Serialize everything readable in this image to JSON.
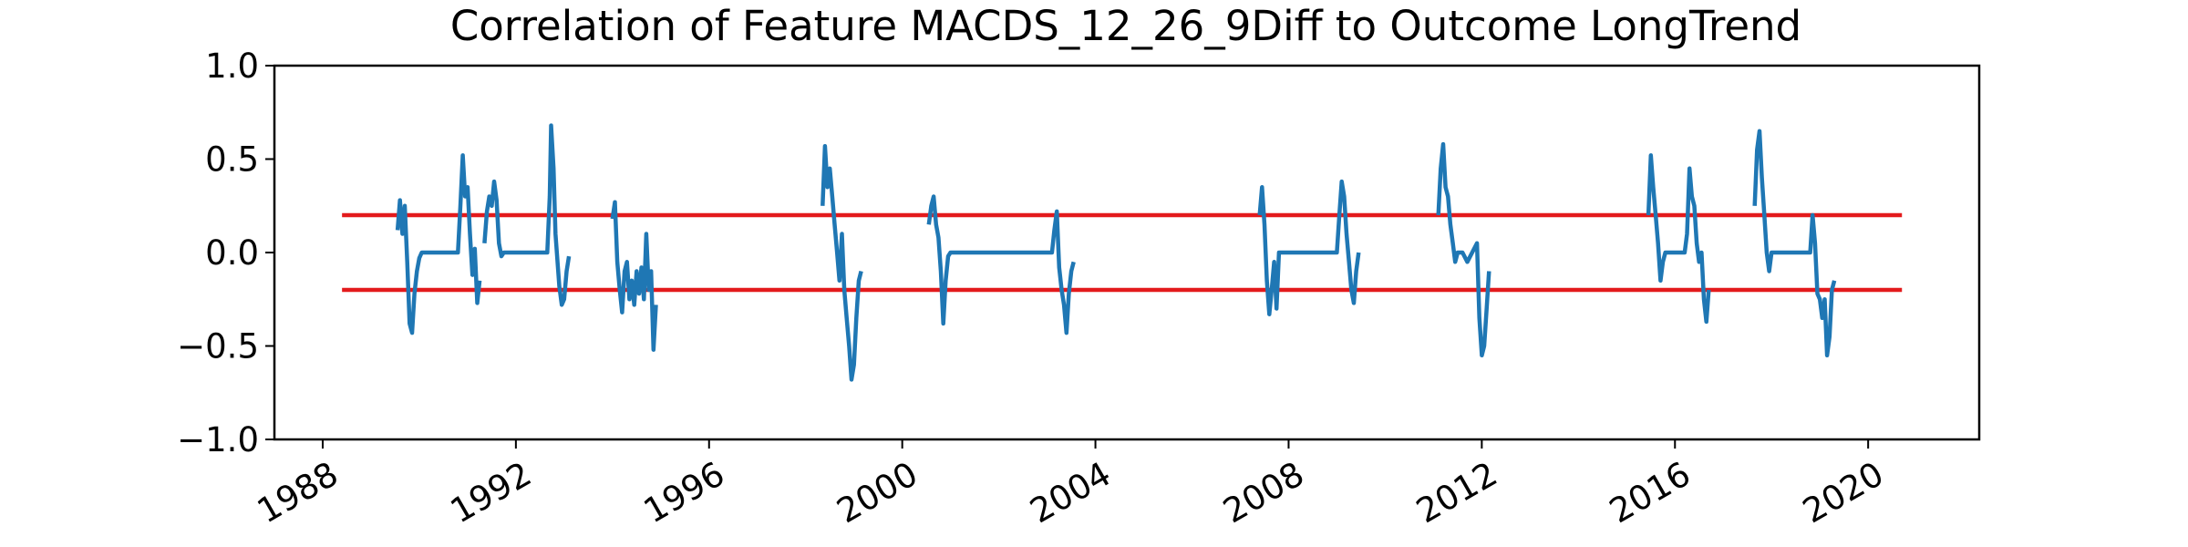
{
  "chart_data": {
    "type": "line",
    "title": "Correlation of Feature MACDS_12_26_9Diff to Outcome LongTrend",
    "xlabel": "",
    "ylabel": "",
    "xlim": [
      1987.0,
      2022.3
    ],
    "ylim": [
      -1.0,
      1.0
    ],
    "x_ticks": [
      1988,
      1992,
      1996,
      2000,
      2004,
      2008,
      2012,
      2016,
      2020
    ],
    "x_tick_labels": [
      "1988",
      "1992",
      "1996",
      "2000",
      "2004",
      "2008",
      "2012",
      "2016",
      "2020"
    ],
    "y_ticks": [
      -1.0,
      -0.5,
      0.0,
      0.5,
      1.0
    ],
    "y_tick_labels": [
      "−1.0",
      "−0.5",
      "0.0",
      "0.5",
      "1.0"
    ],
    "grid": false,
    "threshold_lines": [
      {
        "y": 0.2,
        "x_start": 1988.4,
        "x_end": 2020.7,
        "color": "#e31a1c"
      },
      {
        "y": -0.2,
        "x_start": 1988.4,
        "x_end": 2020.7,
        "color": "#e31a1c"
      }
    ],
    "series_color": "#1f77b4",
    "series": [
      {
        "segments": [
          [
            [
              1989.55,
              0.12
            ],
            [
              1989.6,
              0.28
            ],
            [
              1989.65,
              0.1
            ],
            [
              1989.7,
              0.25
            ],
            [
              1989.75,
              -0.05
            ],
            [
              1989.8,
              -0.38
            ],
            [
              1989.85,
              -0.43
            ],
            [
              1989.9,
              -0.22
            ],
            [
              1989.95,
              -0.1
            ],
            [
              1990.0,
              -0.03
            ],
            [
              1990.05,
              0.0
            ],
            [
              1990.3,
              0.0
            ],
            [
              1990.6,
              0.0
            ],
            [
              1990.8,
              0.0
            ],
            [
              1990.85,
              0.25
            ],
            [
              1990.9,
              0.52
            ],
            [
              1990.95,
              0.3
            ],
            [
              1991.0,
              0.35
            ],
            [
              1991.05,
              0.1
            ],
            [
              1991.1,
              -0.12
            ],
            [
              1991.15,
              0.02
            ],
            [
              1991.2,
              -0.27
            ],
            [
              1991.25,
              -0.15
            ]
          ],
          [
            [
              1991.35,
              0.05
            ],
            [
              1991.4,
              0.22
            ],
            [
              1991.45,
              0.3
            ],
            [
              1991.5,
              0.25
            ],
            [
              1991.55,
              0.38
            ],
            [
              1991.6,
              0.28
            ],
            [
              1991.65,
              0.05
            ],
            [
              1991.7,
              -0.02
            ],
            [
              1991.75,
              0.0
            ],
            [
              1992.0,
              0.0
            ],
            [
              1992.4,
              0.0
            ],
            [
              1992.65,
              0.0
            ],
            [
              1992.7,
              0.3
            ],
            [
              1992.73,
              0.68
            ],
            [
              1992.78,
              0.45
            ],
            [
              1992.82,
              0.1
            ],
            [
              1992.9,
              -0.18
            ],
            [
              1992.95,
              -0.28
            ],
            [
              1993.0,
              -0.25
            ],
            [
              1993.05,
              -0.1
            ],
            [
              1993.1,
              -0.02
            ]
          ],
          [
            [
              1994.0,
              0.18
            ],
            [
              1994.05,
              0.27
            ],
            [
              1994.1,
              -0.05
            ],
            [
              1994.15,
              -0.2
            ],
            [
              1994.2,
              -0.32
            ],
            [
              1994.25,
              -0.1
            ],
            [
              1994.3,
              -0.05
            ],
            [
              1994.35,
              -0.25
            ],
            [
              1994.4,
              -0.15
            ],
            [
              1994.45,
              -0.28
            ],
            [
              1994.5,
              -0.1
            ],
            [
              1994.55,
              -0.22
            ],
            [
              1994.6,
              -0.08
            ],
            [
              1994.65,
              -0.25
            ],
            [
              1994.7,
              0.1
            ],
            [
              1994.75,
              -0.2
            ],
            [
              1994.8,
              -0.1
            ],
            [
              1994.85,
              -0.52
            ],
            [
              1994.9,
              -0.28
            ]
          ],
          [
            [
              1998.35,
              0.25
            ],
            [
              1998.4,
              0.57
            ],
            [
              1998.45,
              0.35
            ],
            [
              1998.5,
              0.45
            ],
            [
              1998.55,
              0.3
            ],
            [
              1998.6,
              0.15
            ],
            [
              1998.65,
              0.0
            ],
            [
              1998.7,
              -0.15
            ],
            [
              1998.75,
              0.1
            ],
            [
              1998.8,
              -0.2
            ],
            [
              1998.85,
              -0.35
            ],
            [
              1998.9,
              -0.5
            ],
            [
              1998.95,
              -0.68
            ],
            [
              1999.0,
              -0.6
            ],
            [
              1999.05,
              -0.35
            ],
            [
              1999.1,
              -0.15
            ],
            [
              1999.15,
              -0.1
            ]
          ],
          [
            [
              2000.55,
              0.15
            ],
            [
              2000.6,
              0.25
            ],
            [
              2000.65,
              0.3
            ],
            [
              2000.7,
              0.15
            ],
            [
              2000.75,
              0.08
            ],
            [
              2000.8,
              -0.1
            ],
            [
              2000.85,
              -0.38
            ],
            [
              2000.9,
              -0.15
            ],
            [
              2000.95,
              -0.02
            ],
            [
              2001.0,
              0.0
            ],
            [
              2001.5,
              0.0
            ],
            [
              2002.0,
              0.0
            ],
            [
              2002.6,
              0.0
            ],
            [
              2003.1,
              0.0
            ],
            [
              2003.15,
              0.12
            ],
            [
              2003.2,
              0.22
            ],
            [
              2003.25,
              -0.08
            ],
            [
              2003.3,
              -0.2
            ],
            [
              2003.35,
              -0.28
            ],
            [
              2003.4,
              -0.43
            ],
            [
              2003.45,
              -0.22
            ],
            [
              2003.5,
              -0.1
            ],
            [
              2003.55,
              -0.05
            ]
          ],
          [
            [
              2007.4,
              0.2
            ],
            [
              2007.45,
              0.35
            ],
            [
              2007.5,
              0.15
            ],
            [
              2007.55,
              -0.15
            ],
            [
              2007.6,
              -0.33
            ],
            [
              2007.65,
              -0.2
            ],
            [
              2007.7,
              -0.05
            ],
            [
              2007.75,
              -0.3
            ],
            [
              2007.8,
              0.0
            ],
            [
              2008.0,
              0.0
            ],
            [
              2008.5,
              0.0
            ],
            [
              2009.0,
              0.0
            ],
            [
              2009.05,
              0.2
            ],
            [
              2009.1,
              0.38
            ],
            [
              2009.15,
              0.3
            ],
            [
              2009.2,
              0.1
            ],
            [
              2009.25,
              -0.05
            ],
            [
              2009.3,
              -0.2
            ],
            [
              2009.35,
              -0.27
            ],
            [
              2009.4,
              -0.1
            ],
            [
              2009.45,
              0.0
            ]
          ],
          [
            [
              2011.1,
              0.2
            ],
            [
              2011.15,
              0.45
            ],
            [
              2011.2,
              0.58
            ],
            [
              2011.25,
              0.35
            ],
            [
              2011.3,
              0.3
            ],
            [
              2011.35,
              0.15
            ],
            [
              2011.4,
              0.05
            ],
            [
              2011.45,
              -0.05
            ],
            [
              2011.5,
              0.0
            ],
            [
              2011.6,
              0.0
            ],
            [
              2011.7,
              -0.05
            ],
            [
              2011.8,
              0.0
            ],
            [
              2011.9,
              0.05
            ],
            [
              2011.95,
              -0.35
            ],
            [
              2012.0,
              -0.55
            ],
            [
              2012.05,
              -0.5
            ],
            [
              2012.1,
              -0.3
            ],
            [
              2012.15,
              -0.1
            ]
          ],
          [
            [
              2015.45,
              0.2
            ],
            [
              2015.5,
              0.52
            ],
            [
              2015.55,
              0.35
            ],
            [
              2015.6,
              0.2
            ],
            [
              2015.65,
              0.05
            ],
            [
              2015.7,
              -0.15
            ],
            [
              2015.75,
              -0.05
            ],
            [
              2015.8,
              0.0
            ],
            [
              2016.0,
              0.0
            ],
            [
              2016.2,
              0.0
            ],
            [
              2016.25,
              0.1
            ],
            [
              2016.3,
              0.45
            ],
            [
              2016.35,
              0.3
            ],
            [
              2016.4,
              0.25
            ],
            [
              2016.45,
              0.05
            ],
            [
              2016.5,
              -0.05
            ],
            [
              2016.55,
              0.0
            ],
            [
              2016.6,
              -0.25
            ],
            [
              2016.65,
              -0.37
            ],
            [
              2016.7,
              -0.2
            ]
          ],
          [
            [
              2017.65,
              0.25
            ],
            [
              2017.7,
              0.55
            ],
            [
              2017.75,
              0.65
            ],
            [
              2017.8,
              0.4
            ],
            [
              2017.85,
              0.2
            ],
            [
              2017.9,
              0.0
            ],
            [
              2017.95,
              -0.1
            ],
            [
              2018.0,
              0.0
            ],
            [
              2018.5,
              0.0
            ],
            [
              2018.8,
              0.0
            ],
            [
              2018.85,
              0.2
            ],
            [
              2018.9,
              0.05
            ],
            [
              2018.95,
              -0.22
            ],
            [
              2019.0,
              -0.25
            ],
            [
              2019.05,
              -0.35
            ],
            [
              2019.1,
              -0.25
            ],
            [
              2019.15,
              -0.55
            ],
            [
              2019.2,
              -0.45
            ],
            [
              2019.25,
              -0.2
            ],
            [
              2019.3,
              -0.15
            ]
          ]
        ]
      }
    ]
  }
}
